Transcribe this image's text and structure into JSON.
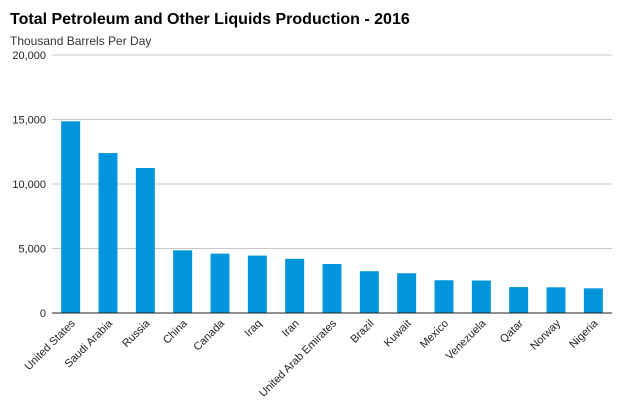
{
  "chart_data": {
    "type": "bar",
    "title": "Total Petroleum and Other Liquids Production - 2016",
    "subtitle": "Thousand Barrels Per Day",
    "categories": [
      "United States",
      "Saudi Arabia",
      "Russia",
      "China",
      "Canada",
      "Iraq",
      "Iran",
      "United Arab Emirates",
      "Brazil",
      "Kuwait",
      "Mexico",
      "Venezuela",
      "Qatar",
      "Norway",
      "Nigeria"
    ],
    "values": [
      14860,
      12400,
      11240,
      4860,
      4600,
      4450,
      4200,
      3800,
      3240,
      3080,
      2540,
      2520,
      2010,
      1990,
      1910
    ],
    "ylim": [
      0,
      20000
    ],
    "yticks": [
      "0",
      "5,000",
      "10,000",
      "15,000",
      "20,000"
    ],
    "ytick_values": [
      0,
      5000,
      10000,
      15000,
      20000
    ],
    "grid": true,
    "bar_color": "#0095da"
  }
}
